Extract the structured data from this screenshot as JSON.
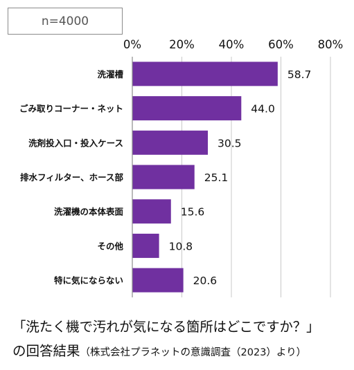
{
  "sample_label": "n=4000",
  "caption": {
    "line1": "「洗たく機で汚れが気になる箇所はどこですか？」",
    "line2_main": "の回答結果",
    "line2_sub": "（株式会社プラネットの意識調査（2023）より）"
  },
  "chart_data": {
    "type": "bar",
    "orientation": "horizontal",
    "categories": [
      "洗濯槽",
      "ごみ取りコーナー・ネット",
      "洗剤投入口・投入ケース",
      "排水フィルター、ホース部",
      "洗濯機の本体表面",
      "その他",
      "特に気にならない"
    ],
    "values": [
      58.7,
      44.0,
      30.5,
      25.1,
      15.6,
      10.8,
      20.6
    ],
    "value_labels": [
      "58.7",
      "44.0",
      "30.5",
      "25.1",
      "15.6",
      "10.8",
      "20.6"
    ],
    "xlim": [
      0,
      80
    ],
    "x_ticks": [
      "0%",
      "20%",
      "40%",
      "60%",
      "80%"
    ],
    "x_tick_values": [
      0,
      20,
      40,
      60,
      80
    ],
    "grid": true,
    "bar_color": "#7030a0",
    "grid_color": "#c8c8c8"
  }
}
